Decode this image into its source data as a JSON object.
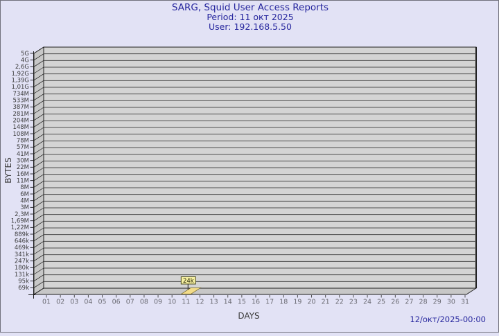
{
  "colors": {
    "page_bg": "#e2e2f5",
    "frame": "#70707b",
    "title_color": "#26269e",
    "plot_bg": "#d4d4d4",
    "grid": "#4e4e4e",
    "wall": "#c7c7c7",
    "axis": "#1c1c1c",
    "y_tick_text": "#3a3a3a",
    "x_tick_text": "#6b6b73",
    "axis_label_text": "#3a3a3a",
    "bar_fill": "#f3dc8a",
    "bar_edge": "#6b5d1e",
    "bar_label_bg": "#f6f0a2",
    "bar_label_border": "#4a4a22",
    "bar_label_text": "#1f1f00",
    "pointer": "#333333"
  },
  "chart_data": {
    "type": "bar",
    "title": "SARG, Squid User Access Reports",
    "subtitle_period": "Period: 11 окт 2025",
    "subtitle_user": "User: 192.168.5.50",
    "footer_timestamp": "12/окт/2025-00:00",
    "xlabel": "DAYS",
    "ylabel": "BYTES",
    "y_scale": "exponential",
    "grid": "horizontal",
    "y_tick_labels": [
      "5G",
      "4G",
      "2,6G",
      "1,92G",
      "1,39G",
      "1,01G",
      "734M",
      "533M",
      "387M",
      "281M",
      "204M",
      "148M",
      "108M",
      "78M",
      "57M",
      "41M",
      "30M",
      "22M",
      "16M",
      "11M",
      "8M",
      "6M",
      "4M",
      "3M",
      "2,3M",
      "1,69M",
      "1,22M",
      "889k",
      "646k",
      "469k",
      "341k",
      "247k",
      "180k",
      "131k",
      "95k",
      "69k"
    ],
    "x_categories": [
      "01",
      "02",
      "03",
      "04",
      "05",
      "06",
      "07",
      "08",
      "09",
      "10",
      "11",
      "12",
      "13",
      "14",
      "15",
      "16",
      "17",
      "18",
      "19",
      "20",
      "21",
      "22",
      "23",
      "24",
      "25",
      "26",
      "27",
      "28",
      "29",
      "30",
      "31"
    ],
    "points": [
      {
        "day": "11",
        "value": 24000,
        "value_label": "24k"
      }
    ]
  }
}
